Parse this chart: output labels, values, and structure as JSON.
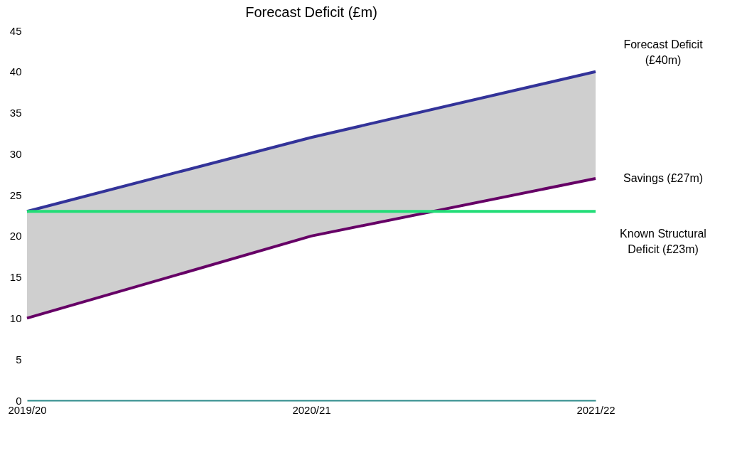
{
  "chart_data": {
    "type": "line",
    "title": "Forecast Deficit (£m)",
    "categories": [
      "2019/20",
      "2020/21",
      "2021/22"
    ],
    "series": [
      {
        "name": "Forecast Deficit (£40m)",
        "color": "#333399",
        "values": [
          23,
          32,
          40
        ],
        "lower": [
          10,
          20,
          27
        ],
        "upper": [
          23,
          32,
          40
        ]
      },
      {
        "name": "Savings (£27m)",
        "color": "#660066",
        "values": [
          10,
          20,
          27
        ]
      },
      {
        "name": "Known Structural Deficit (£23m)",
        "color": "#22dd77",
        "values": [
          23,
          23,
          23
        ]
      }
    ],
    "ylim": [
      0,
      45
    ],
    "yticks": [
      0,
      5,
      10,
      15,
      20,
      25,
      30,
      35,
      40,
      45
    ],
    "grid": false,
    "legend": false,
    "marker": "none",
    "line_style": "solid"
  }
}
